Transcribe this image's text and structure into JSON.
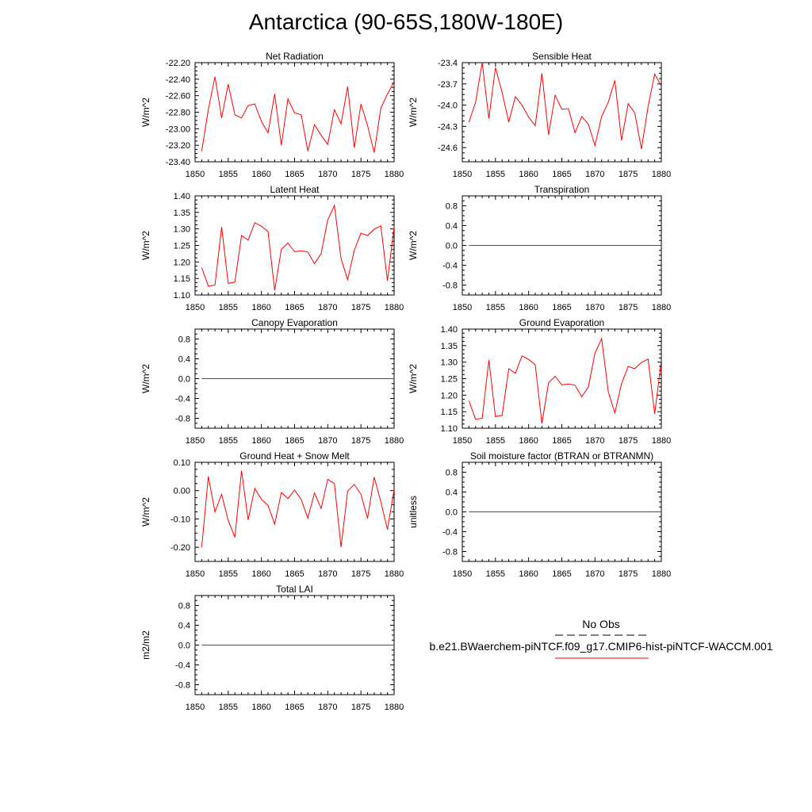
{
  "page": {
    "title": "Antarctica (90-65S,180W-180E)"
  },
  "colors": {
    "series": "#ff0000",
    "axis": "#000000",
    "obs": "#000000"
  },
  "legend": {
    "obs_label": "No Obs",
    "case_label": "b.e21.BWaerchem-piNTCF.f09_g17.CMIP6-hist-piNTCF-WACCM.001"
  },
  "chart_data": [
    {
      "type": "line",
      "title": "Net Radiation",
      "ylabel": "W/m^2",
      "xlim": [
        1850,
        1880
      ],
      "ylim": [
        -23.4,
        -22.2
      ],
      "xticks": [
        "1850",
        "1855",
        "1860",
        "1865",
        "1870",
        "1875",
        "1880"
      ],
      "yticks": [
        "-22.20",
        "-22.40",
        "-22.60",
        "-22.80",
        "-23.00",
        "-23.20",
        "-23.40"
      ],
      "x": [
        1851,
        1852,
        1853,
        1854,
        1855,
        1856,
        1857,
        1858,
        1859,
        1860,
        1861,
        1862,
        1863,
        1864,
        1865,
        1866,
        1867,
        1868,
        1869,
        1870,
        1871,
        1872,
        1873,
        1874,
        1875,
        1876,
        1877,
        1878,
        1879,
        1880
      ],
      "values": [
        -23.27,
        -22.77,
        -22.37,
        -22.87,
        -22.46,
        -22.83,
        -22.87,
        -22.72,
        -22.7,
        -22.91,
        -23.05,
        -22.58,
        -23.2,
        -22.64,
        -22.81,
        -22.83,
        -23.27,
        -22.95,
        -23.08,
        -23.19,
        -22.77,
        -22.94,
        -22.49,
        -23.23,
        -22.7,
        -22.96,
        -23.29,
        -22.75,
        -22.58,
        -22.43
      ]
    },
    {
      "type": "line",
      "title": "Sensible Heat",
      "ylabel": "W/m^2",
      "xlim": [
        1850,
        1880
      ],
      "ylim": [
        -24.8,
        -23.4
      ],
      "xticks": [
        "1850",
        "1855",
        "1860",
        "1865",
        "1870",
        "1875",
        "1880"
      ],
      "yticks": [
        "-23.4",
        "-23.7",
        "-24.0",
        "-24.3",
        "-24.6"
      ],
      "x": [
        1851,
        1852,
        1853,
        1854,
        1855,
        1856,
        1857,
        1858,
        1859,
        1860,
        1861,
        1862,
        1863,
        1864,
        1865,
        1866,
        1867,
        1868,
        1869,
        1870,
        1871,
        1872,
        1873,
        1874,
        1875,
        1876,
        1877,
        1878,
        1879,
        1880
      ],
      "values": [
        -24.24,
        -23.96,
        -23.4,
        -24.19,
        -23.47,
        -23.82,
        -24.24,
        -23.88,
        -24.0,
        -24.17,
        -24.29,
        -23.55,
        -24.42,
        -23.86,
        -24.06,
        -24.05,
        -24.39,
        -24.16,
        -24.27,
        -24.57,
        -24.16,
        -23.96,
        -23.65,
        -24.5,
        -23.98,
        -24.11,
        -24.62,
        -24.02,
        -23.56,
        -23.73
      ]
    },
    {
      "type": "line",
      "title": "Latent Heat",
      "ylabel": "W/m^2",
      "xlim": [
        1850,
        1880
      ],
      "ylim": [
        1.1,
        1.4
      ],
      "xticks": [
        "1850",
        "1855",
        "1860",
        "1865",
        "1870",
        "1875",
        "1880"
      ],
      "yticks": [
        "1.40",
        "1.35",
        "1.30",
        "1.25",
        "1.20",
        "1.15",
        "1.10"
      ],
      "x": [
        1851,
        1852,
        1853,
        1854,
        1855,
        1856,
        1857,
        1858,
        1859,
        1860,
        1861,
        1862,
        1863,
        1864,
        1865,
        1866,
        1867,
        1868,
        1869,
        1870,
        1871,
        1872,
        1873,
        1874,
        1875,
        1876,
        1877,
        1878,
        1879,
        1880
      ],
      "values": [
        1.183,
        1.127,
        1.13,
        1.306,
        1.135,
        1.139,
        1.28,
        1.266,
        1.319,
        1.308,
        1.292,
        1.114,
        1.238,
        1.257,
        1.231,
        1.234,
        1.23,
        1.195,
        1.225,
        1.327,
        1.371,
        1.21,
        1.146,
        1.235,
        1.287,
        1.28,
        1.299,
        1.309,
        1.143,
        1.305
      ]
    },
    {
      "type": "line",
      "title": "Transpiration",
      "ylabel": "W/m^2",
      "xlim": [
        1850,
        1880
      ],
      "ylim": [
        -1.0,
        1.0
      ],
      "xticks": [
        "1850",
        "1855",
        "1860",
        "1865",
        "1870",
        "1875",
        "1880"
      ],
      "yticks": [
        "0.8",
        "0.4",
        "0.0",
        "-0.4",
        "-0.8"
      ],
      "x": [
        1851,
        1852,
        1853,
        1854,
        1855,
        1856,
        1857,
        1858,
        1859,
        1860,
        1861,
        1862,
        1863,
        1864,
        1865,
        1866,
        1867,
        1868,
        1869,
        1870,
        1871,
        1872,
        1873,
        1874,
        1875,
        1876,
        1877,
        1878,
        1879,
        1880
      ],
      "values": [
        0,
        0,
        0,
        0,
        0,
        0,
        0,
        0,
        0,
        0,
        0,
        0,
        0,
        0,
        0,
        0,
        0,
        0,
        0,
        0,
        0,
        0,
        0,
        0,
        0,
        0,
        0,
        0,
        0,
        0
      ]
    },
    {
      "type": "line",
      "title": "Canopy Evaporation",
      "ylabel": "W/m^2",
      "xlim": [
        1850,
        1880
      ],
      "ylim": [
        -1.0,
        1.0
      ],
      "xticks": [
        "1850",
        "1855",
        "1860",
        "1865",
        "1870",
        "1875",
        "1880"
      ],
      "yticks": [
        "0.8",
        "0.4",
        "0.0",
        "-0.4",
        "-0.8"
      ],
      "x": [
        1851,
        1852,
        1853,
        1854,
        1855,
        1856,
        1857,
        1858,
        1859,
        1860,
        1861,
        1862,
        1863,
        1864,
        1865,
        1866,
        1867,
        1868,
        1869,
        1870,
        1871,
        1872,
        1873,
        1874,
        1875,
        1876,
        1877,
        1878,
        1879,
        1880
      ],
      "values": [
        0,
        0,
        0,
        0,
        0,
        0,
        0,
        0,
        0,
        0,
        0,
        0,
        0,
        0,
        0,
        0,
        0,
        0,
        0,
        0,
        0,
        0,
        0,
        0,
        0,
        0,
        0,
        0,
        0,
        0
      ]
    },
    {
      "type": "line",
      "title": "Ground Evaporation",
      "ylabel": "W/m^2",
      "xlim": [
        1850,
        1880
      ],
      "ylim": [
        1.1,
        1.4
      ],
      "xticks": [
        "1850",
        "1855",
        "1860",
        "1865",
        "1870",
        "1875",
        "1880"
      ],
      "yticks": [
        "1.40",
        "1.35",
        "1.30",
        "1.25",
        "1.20",
        "1.15",
        "1.10"
      ],
      "x": [
        1851,
        1852,
        1853,
        1854,
        1855,
        1856,
        1857,
        1858,
        1859,
        1860,
        1861,
        1862,
        1863,
        1864,
        1865,
        1866,
        1867,
        1868,
        1869,
        1870,
        1871,
        1872,
        1873,
        1874,
        1875,
        1876,
        1877,
        1878,
        1879,
        1880
      ],
      "values": [
        1.183,
        1.127,
        1.13,
        1.306,
        1.135,
        1.139,
        1.28,
        1.266,
        1.319,
        1.308,
        1.292,
        1.114,
        1.238,
        1.257,
        1.231,
        1.234,
        1.23,
        1.195,
        1.225,
        1.327,
        1.371,
        1.21,
        1.146,
        1.235,
        1.287,
        1.28,
        1.299,
        1.309,
        1.143,
        1.305
      ]
    },
    {
      "type": "line",
      "title": "Ground Heat + Snow Melt",
      "ylabel": "W/m^2",
      "xlim": [
        1850,
        1880
      ],
      "ylim": [
        -0.25,
        0.1
      ],
      "xticks": [
        "1850",
        "1855",
        "1860",
        "1865",
        "1870",
        "1875",
        "1880"
      ],
      "yticks": [
        "0.10",
        "0.00",
        "-0.10",
        "-0.20"
      ],
      "x": [
        1851,
        1852,
        1853,
        1854,
        1855,
        1856,
        1857,
        1858,
        1859,
        1860,
        1861,
        1862,
        1863,
        1864,
        1865,
        1866,
        1867,
        1868,
        1869,
        1870,
        1871,
        1872,
        1873,
        1874,
        1875,
        1876,
        1877,
        1878,
        1879,
        1880
      ],
      "values": [
        -0.2,
        0.05,
        -0.075,
        -0.013,
        -0.105,
        -0.165,
        0.07,
        -0.103,
        0.008,
        -0.031,
        -0.052,
        -0.118,
        -0.007,
        -0.028,
        0.002,
        -0.032,
        -0.097,
        -0.008,
        -0.063,
        0.04,
        0.025,
        -0.2,
        -0.002,
        0.022,
        -0.013,
        -0.098,
        0.048,
        -0.04,
        -0.137,
        0.003
      ]
    },
    {
      "type": "line",
      "title": "Soil moisture factor (BTRAN or BTRANMN)",
      "ylabel": "unitless",
      "xlim": [
        1850,
        1880
      ],
      "ylim": [
        -1.0,
        1.0
      ],
      "xticks": [
        "1850",
        "1855",
        "1860",
        "1865",
        "1870",
        "1875",
        "1880"
      ],
      "yticks": [
        "0.8",
        "0.4",
        "0.0",
        "-0.4",
        "-0.8"
      ],
      "x": [
        1851,
        1852,
        1853,
        1854,
        1855,
        1856,
        1857,
        1858,
        1859,
        1860,
        1861,
        1862,
        1863,
        1864,
        1865,
        1866,
        1867,
        1868,
        1869,
        1870,
        1871,
        1872,
        1873,
        1874,
        1875,
        1876,
        1877,
        1878,
        1879,
        1880
      ],
      "values": [
        0,
        0,
        0,
        0,
        0,
        0,
        0,
        0,
        0,
        0,
        0,
        0,
        0,
        0,
        0,
        0,
        0,
        0,
        0,
        0,
        0,
        0,
        0,
        0,
        0,
        0,
        0,
        0,
        0,
        0
      ]
    },
    {
      "type": "line",
      "title": "Total LAI",
      "ylabel": "m2/m2",
      "xlim": [
        1850,
        1880
      ],
      "ylim": [
        -1.0,
        1.0
      ],
      "xticks": [
        "1850",
        "1855",
        "1860",
        "1865",
        "1870",
        "1875",
        "1880"
      ],
      "yticks": [
        "0.8",
        "0.4",
        "0.0",
        "-0.4",
        "-0.8"
      ],
      "x": [
        1851,
        1852,
        1853,
        1854,
        1855,
        1856,
        1857,
        1858,
        1859,
        1860,
        1861,
        1862,
        1863,
        1864,
        1865,
        1866,
        1867,
        1868,
        1869,
        1870,
        1871,
        1872,
        1873,
        1874,
        1875,
        1876,
        1877,
        1878,
        1879,
        1880
      ],
      "values": [
        0,
        0,
        0,
        0,
        0,
        0,
        0,
        0,
        0,
        0,
        0,
        0,
        0,
        0,
        0,
        0,
        0,
        0,
        0,
        0,
        0,
        0,
        0,
        0,
        0,
        0,
        0,
        0,
        0,
        0
      ]
    }
  ]
}
